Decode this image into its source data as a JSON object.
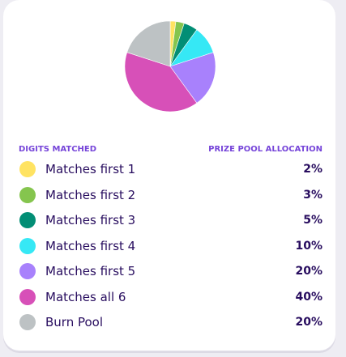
{
  "header": {
    "digits_label": "DIGITS MATCHED",
    "allocation_label": "PRIZE POOL ALLOCATION"
  },
  "rows": [
    {
      "label": "Matches first 1",
      "percent": "2%",
      "color": "#ffe362"
    },
    {
      "label": "Matches first 2",
      "percent": "3%",
      "color": "#85c54e"
    },
    {
      "label": "Matches first 3",
      "percent": "5%",
      "color": "#028e75"
    },
    {
      "label": "Matches first 4",
      "percent": "10%",
      "color": "#36e8f5"
    },
    {
      "label": "Matches first 5",
      "percent": "20%",
      "color": "#a881fc"
    },
    {
      "label": "Matches all 6",
      "percent": "40%",
      "color": "#d750b8"
    },
    {
      "label": "Burn Pool",
      "percent": "20%",
      "color": "#bdc2c4"
    }
  ],
  "chart_data": {
    "type": "pie",
    "categories": [
      "Matches first 1",
      "Matches first 2",
      "Matches first 3",
      "Matches first 4",
      "Matches first 5",
      "Matches all 6",
      "Burn Pool"
    ],
    "values": [
      2,
      3,
      5,
      10,
      20,
      40,
      20
    ],
    "colors": [
      "#ffe362",
      "#85c54e",
      "#028e75",
      "#36e8f5",
      "#a881fc",
      "#d750b8",
      "#bdc2c4"
    ]
  }
}
